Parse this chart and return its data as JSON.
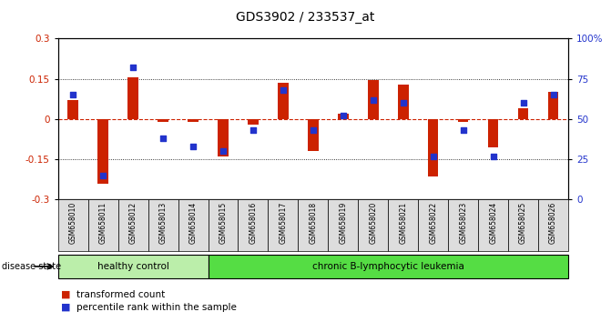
{
  "title": "GDS3902 / 233537_at",
  "samples": [
    "GSM658010",
    "GSM658011",
    "GSM658012",
    "GSM658013",
    "GSM658014",
    "GSM658015",
    "GSM658016",
    "GSM658017",
    "GSM658018",
    "GSM658019",
    "GSM658020",
    "GSM658021",
    "GSM658022",
    "GSM658023",
    "GSM658024",
    "GSM658025",
    "GSM658026"
  ],
  "red_values": [
    0.07,
    -0.24,
    0.155,
    -0.01,
    -0.01,
    -0.14,
    -0.02,
    0.135,
    -0.12,
    0.02,
    0.145,
    0.13,
    -0.215,
    -0.01,
    -0.105,
    0.04,
    0.1
  ],
  "blue_percentiles": [
    65,
    15,
    82,
    38,
    33,
    30,
    43,
    68,
    43,
    52,
    62,
    60,
    27,
    43,
    27,
    60,
    65
  ],
  "healthy_count": 5,
  "ylim": [
    -0.3,
    0.3
  ],
  "y2lim": [
    0,
    100
  ],
  "yticks": [
    -0.3,
    -0.15,
    0.0,
    0.15,
    0.3
  ],
  "y2ticks": [
    0,
    25,
    50,
    75,
    100
  ],
  "bar_color": "#cc2200",
  "dot_color": "#2233cc",
  "healthy_color": "#bbeeaa",
  "leukemia_color": "#55dd44",
  "plot_bg": "#ffffff",
  "label_bg": "#dddddd",
  "zero_line_color": "#cc2200",
  "bar_width": 0.35,
  "disease_state_label": "disease state",
  "healthy_label": "healthy control",
  "leukemia_label": "chronic B-lymphocytic leukemia",
  "legend_red": "transformed count",
  "legend_blue": "percentile rank within the sample"
}
